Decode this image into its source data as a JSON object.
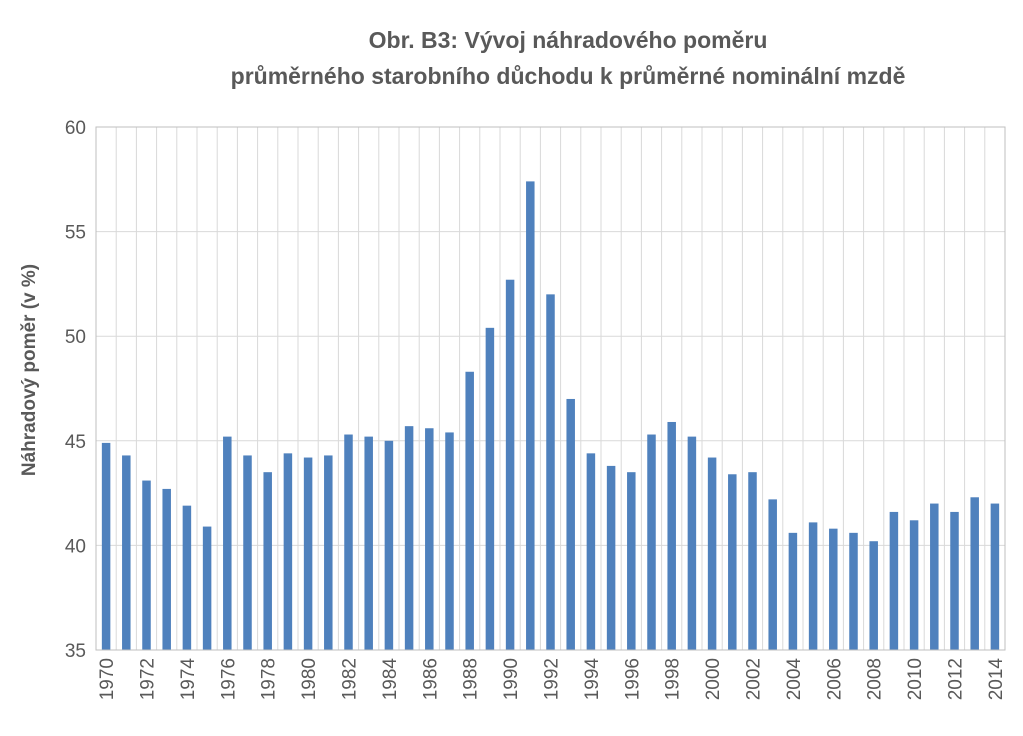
{
  "chart_data": {
    "type": "bar",
    "title_lines": [
      "Obr. B3: Vývoj náhradového poměru",
      "průměrného starobního důchodu k průměrné nominální mzdě"
    ],
    "xlabel": "",
    "ylabel": "Náhradový poměr (v %)",
    "ylim": [
      35,
      60
    ],
    "yticks": [
      35,
      40,
      45,
      50,
      55,
      60
    ],
    "grid": true,
    "bar_color": "#4f81bd",
    "categories": [
      "1970",
      "1971",
      "1972",
      "1973",
      "1974",
      "1975",
      "1976",
      "1977",
      "1978",
      "1979",
      "1980",
      "1981",
      "1982",
      "1983",
      "1984",
      "1985",
      "1986",
      "1987",
      "1988",
      "1989",
      "1990",
      "1991",
      "1992",
      "1993",
      "1994",
      "1995",
      "1996",
      "1997",
      "1998",
      "1999",
      "2000",
      "2001",
      "2002",
      "2003",
      "2004",
      "2005",
      "2006",
      "2007",
      "2008",
      "2009",
      "2010",
      "2011",
      "2012",
      "2013",
      "2014"
    ],
    "x_tick_labels": [
      "1970",
      "",
      "1972",
      "",
      "1974",
      "",
      "1976",
      "",
      "1978",
      "",
      "1980",
      "",
      "1982",
      "",
      "1984",
      "",
      "1986",
      "",
      "1988",
      "",
      "1990",
      "",
      "1992",
      "",
      "1994",
      "",
      "1996",
      "",
      "1998",
      "",
      "2000",
      "",
      "2002",
      "",
      "2004",
      "",
      "2006",
      "",
      "2008",
      "",
      "2010",
      "",
      "2012",
      "",
      "2014"
    ],
    "values": [
      44.9,
      44.3,
      43.1,
      42.7,
      41.9,
      40.9,
      45.2,
      44.3,
      43.5,
      44.4,
      44.2,
      44.3,
      45.3,
      45.2,
      45.0,
      45.7,
      45.6,
      45.4,
      48.3,
      50.4,
      52.7,
      57.4,
      52.0,
      47.0,
      44.4,
      43.8,
      43.5,
      45.3,
      45.9,
      45.2,
      44.2,
      43.4,
      43.5,
      42.2,
      40.6,
      41.1,
      40.8,
      40.6,
      40.2,
      41.6,
      41.2,
      42.0,
      41.6,
      42.3,
      42.0
    ]
  }
}
